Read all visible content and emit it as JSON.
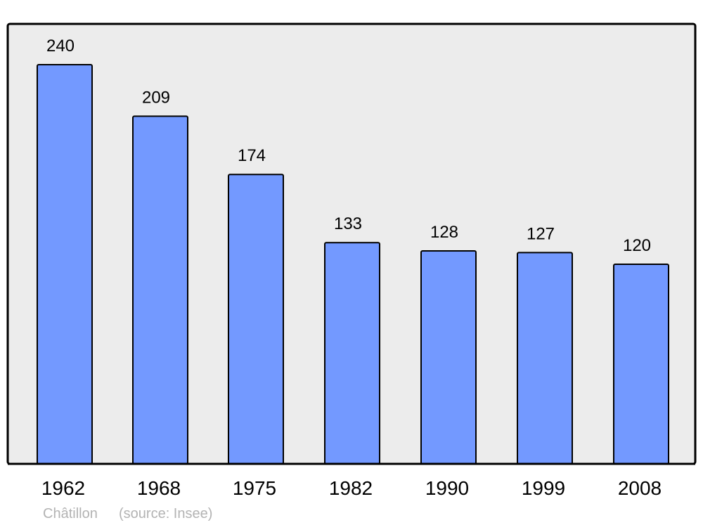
{
  "chart_data": {
    "type": "bar",
    "categories": [
      "1962",
      "1968",
      "1975",
      "1982",
      "1990",
      "1999",
      "2008"
    ],
    "values": [
      240,
      209,
      174,
      133,
      128,
      127,
      120
    ],
    "data_labels": [
      "240",
      "209",
      "174",
      "133",
      "128",
      "127",
      "120"
    ],
    "title": "",
    "xlabel": "",
    "ylabel": "",
    "ylim": [
      0,
      264.5
    ],
    "grid": false,
    "colors": {
      "bar": "#7399ff",
      "plot_bg": "#ececec",
      "stroke": "#000000",
      "footer": "#b3b3b3"
    }
  },
  "footer": {
    "place": "Châtillon",
    "source": "(source: Insee)"
  }
}
